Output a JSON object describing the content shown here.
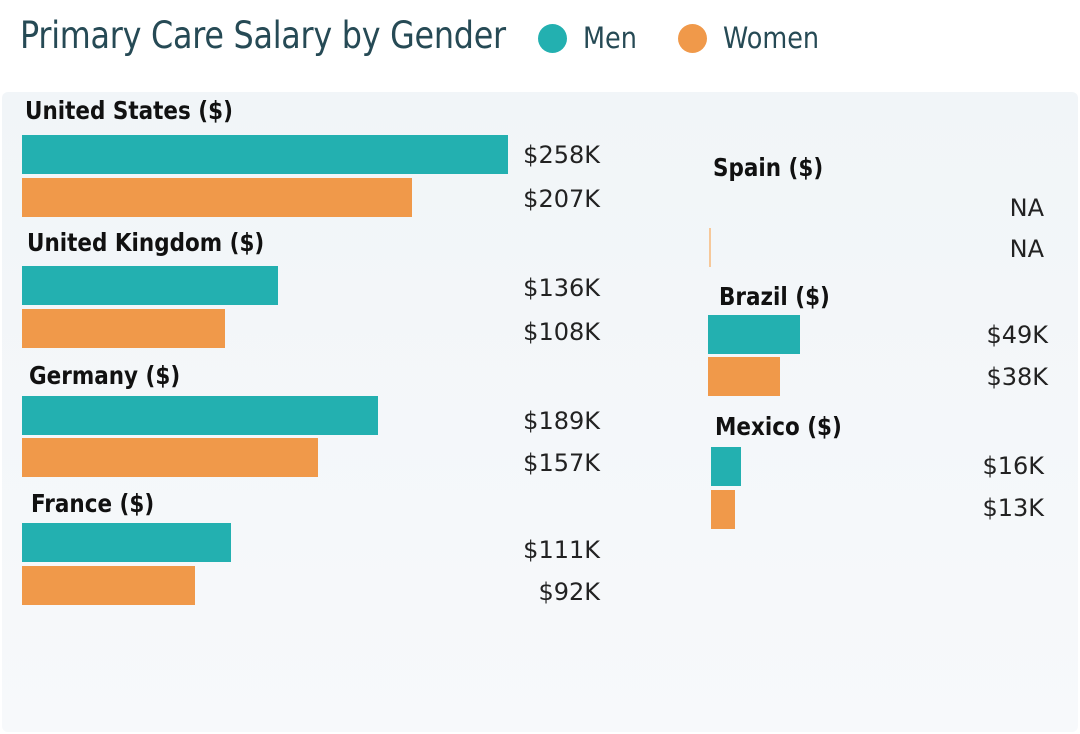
{
  "title": "Primary Care Salary by Gender",
  "legend": [
    {
      "label": "Men",
      "color": "#23b0b0"
    },
    {
      "label": "Women",
      "color": "#f0994a"
    }
  ],
  "chart_data": {
    "type": "bar",
    "orientation": "horizontal",
    "title": "Primary Care Salary by Gender",
    "unit": "$K",
    "series_names": [
      "Men",
      "Women"
    ],
    "groups": [
      {
        "label": "United States ($)",
        "men": 258,
        "women": 207,
        "men_label": "$258K",
        "women_label": "$207K"
      },
      {
        "label": "United Kingdom ($)",
        "men": 136,
        "women": 108,
        "men_label": "$136K",
        "women_label": "$108K"
      },
      {
        "label": "Germany ($)",
        "men": 189,
        "women": 157,
        "men_label": "$189K",
        "women_label": "$157K"
      },
      {
        "label": "France ($)",
        "men": 111,
        "women": 92,
        "men_label": "$111K",
        "women_label": "$92K"
      },
      {
        "label": "Spain ($)",
        "men": null,
        "women": null,
        "men_label": "NA",
        "women_label": "NA"
      },
      {
        "label": "Brazil ($)",
        "men": 49,
        "women": 38,
        "men_label": "$49K",
        "women_label": "$38K"
      },
      {
        "label": "Mexico ($)",
        "men": 16,
        "women": 13,
        "men_label": "$16K",
        "women_label": "$13K"
      }
    ]
  }
}
